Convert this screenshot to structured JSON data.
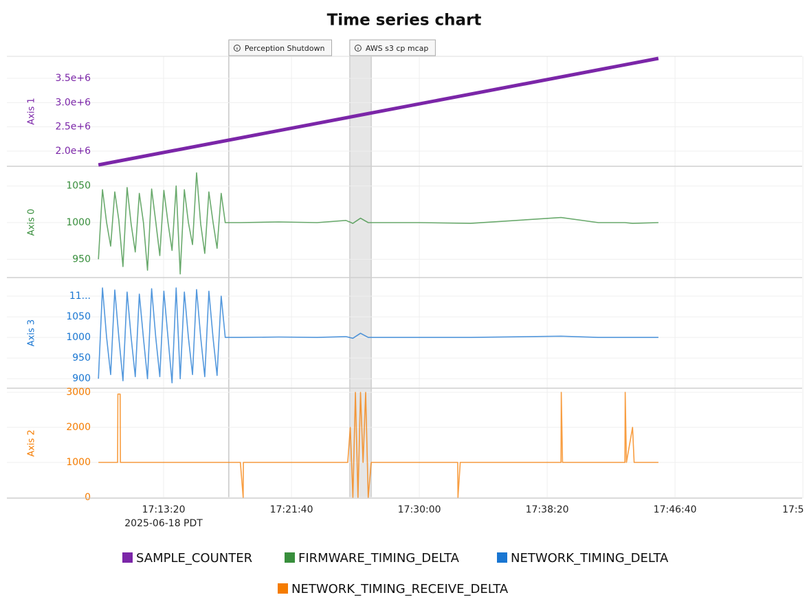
{
  "chart_data": {
    "type": "line",
    "title": "Time series chart",
    "xlim": [
      61387,
      64497
    ],
    "xticks": [
      {
        "value": 62000,
        "label": "17:13:20"
      },
      {
        "value": 62500,
        "label": "17:21:40"
      },
      {
        "value": 63000,
        "label": "17:30:00"
      },
      {
        "value": 63500,
        "label": "17:38:20"
      },
      {
        "value": 64000,
        "label": "17:46:40"
      },
      {
        "value": 64500,
        "label": "17:5"
      }
    ],
    "x_sublabel": "2025-06-18 PDT",
    "grid": true,
    "annotations": [
      {
        "label": "Perception Shutdown",
        "x": 62255
      },
      {
        "label": "AWS s3 cp mcap",
        "x": [
          62728,
          62812
        ]
      }
    ],
    "panels": [
      {
        "axis_label": "Axis 1",
        "ylim": [
          1688000,
          3953000
        ],
        "yticks": [
          {
            "value": 2000000,
            "label": "2.0e+6"
          },
          {
            "value": 2500000,
            "label": "2.5e+6"
          },
          {
            "value": 3000000,
            "label": "3.0e+6"
          },
          {
            "value": 3500000,
            "label": "3.5e+6"
          }
        ],
        "series": [
          {
            "name": "SAMPLE_COUNTER",
            "color": "#7b26a8",
            "width": 5,
            "x": [
              61745,
              63935
            ],
            "values": [
              1716000,
              3910000
            ]
          }
        ]
      },
      {
        "axis_label": "Axis 0",
        "ylim": [
          925,
          1076
        ],
        "yticks": [
          950,
          1000,
          1050
        ],
        "series": [
          {
            "name": "FIRMWARE_TIMING_DELTA",
            "color": "#388e3c",
            "width": 1.6,
            "x": [
              61745,
              61761,
              61777,
              61793,
              61809,
              61825,
              61841,
              61857,
              61873,
              61889,
              61905,
              61921,
              61937,
              61953,
              61969,
              61985,
              62001,
              62017,
              62033,
              62049,
              62065,
              62081,
              62097,
              62113,
              62129,
              62145,
              62161,
              62177,
              62193,
              62209,
              62225,
              62241,
              62257,
              62300,
              62450,
              62600,
              62713,
              62740,
              62770,
              62800,
              62812,
              63000,
              63200,
              63554,
              63700,
              63804,
              63834,
              63935
            ],
            "values": [
              950,
              1045,
              1000,
              968,
              1042,
              1003,
              940,
              1048,
              998,
              960,
              1040,
              1000,
              935,
              1046,
              1002,
              955,
              1044,
              1000,
              962,
              1050,
              930,
              1045,
              1000,
              970,
              1068,
              998,
              958,
              1042,
              1001,
              965,
              1040,
              1000,
              1000,
              1000,
              1001,
              1000,
              1003,
              999,
              1006,
              1000,
              1000,
              1000,
              999,
              1007,
              1000,
              1000,
              999,
              1000
            ]
          }
        ]
      },
      {
        "axis_label": "Axis 3",
        "ylim": [
          877,
          1145
        ],
        "yticks": [
          900,
          950,
          1000,
          1050,
          {
            "value": 1100,
            "label": "11..."
          }
        ],
        "series": [
          {
            "name": "NETWORK_TIMING_DELTA",
            "color": "#1976d2",
            "width": 1.6,
            "x": [
              61745,
              61761,
              61777,
              61793,
              61809,
              61825,
              61841,
              61857,
              61873,
              61889,
              61905,
              61921,
              61937,
              61953,
              61969,
              61985,
              62001,
              62017,
              62033,
              62049,
              62065,
              62081,
              62097,
              62113,
              62129,
              62145,
              62161,
              62177,
              62193,
              62209,
              62225,
              62241,
              62257,
              62300,
              62450,
              62600,
              62713,
              62740,
              62770,
              62800,
              62812,
              63000,
              63200,
              63554,
              63700,
              63804,
              63834,
              63935
            ],
            "values": [
              900,
              1120,
              1000,
              910,
              1115,
              1000,
              895,
              1110,
              1000,
              905,
              1105,
              998,
              900,
              1118,
              1002,
              905,
              1112,
              1000,
              890,
              1120,
              900,
              1110,
              1000,
              910,
              1116,
              1000,
              905,
              1112,
              1000,
              908,
              1100,
              1000,
              1000,
              1000,
              1001,
              1000,
              1002,
              998,
              1010,
              1000,
              1000,
              1000,
              1000,
              1003,
              1000,
              1000,
              1000,
              1000
            ]
          }
        ]
      },
      {
        "axis_label": "Axis 2",
        "ylim": [
          -20,
          3118
        ],
        "yticks": [
          0,
          1000,
          2000,
          3000
        ],
        "series": [
          {
            "name": "NETWORK_TIMING_RECEIVE_DELTA",
            "color": "#f57c00",
            "width": 1.6,
            "x": [
              61745,
              61820,
              61821,
              61830,
              61831,
              62300,
              62311,
              62312,
              62720,
              62730,
              62740,
              62750,
              62760,
              62770,
              62780,
              62790,
              62800,
              62812,
              63150,
              63151,
              63160,
              63554,
              63555,
              63560,
              63804,
              63805,
              63810,
              63834,
              63840,
              63935
            ],
            "values": [
              1000,
              1000,
              2950,
              2950,
              1000,
              1000,
              0,
              1000,
              1000,
              2000,
              0,
              3000,
              0,
              3000,
              1000,
              3000,
              0,
              1000,
              1000,
              0,
              1000,
              1000,
              3000,
              1000,
              1000,
              3000,
              1000,
              2000,
              1000,
              1000
            ]
          }
        ]
      }
    ]
  }
}
